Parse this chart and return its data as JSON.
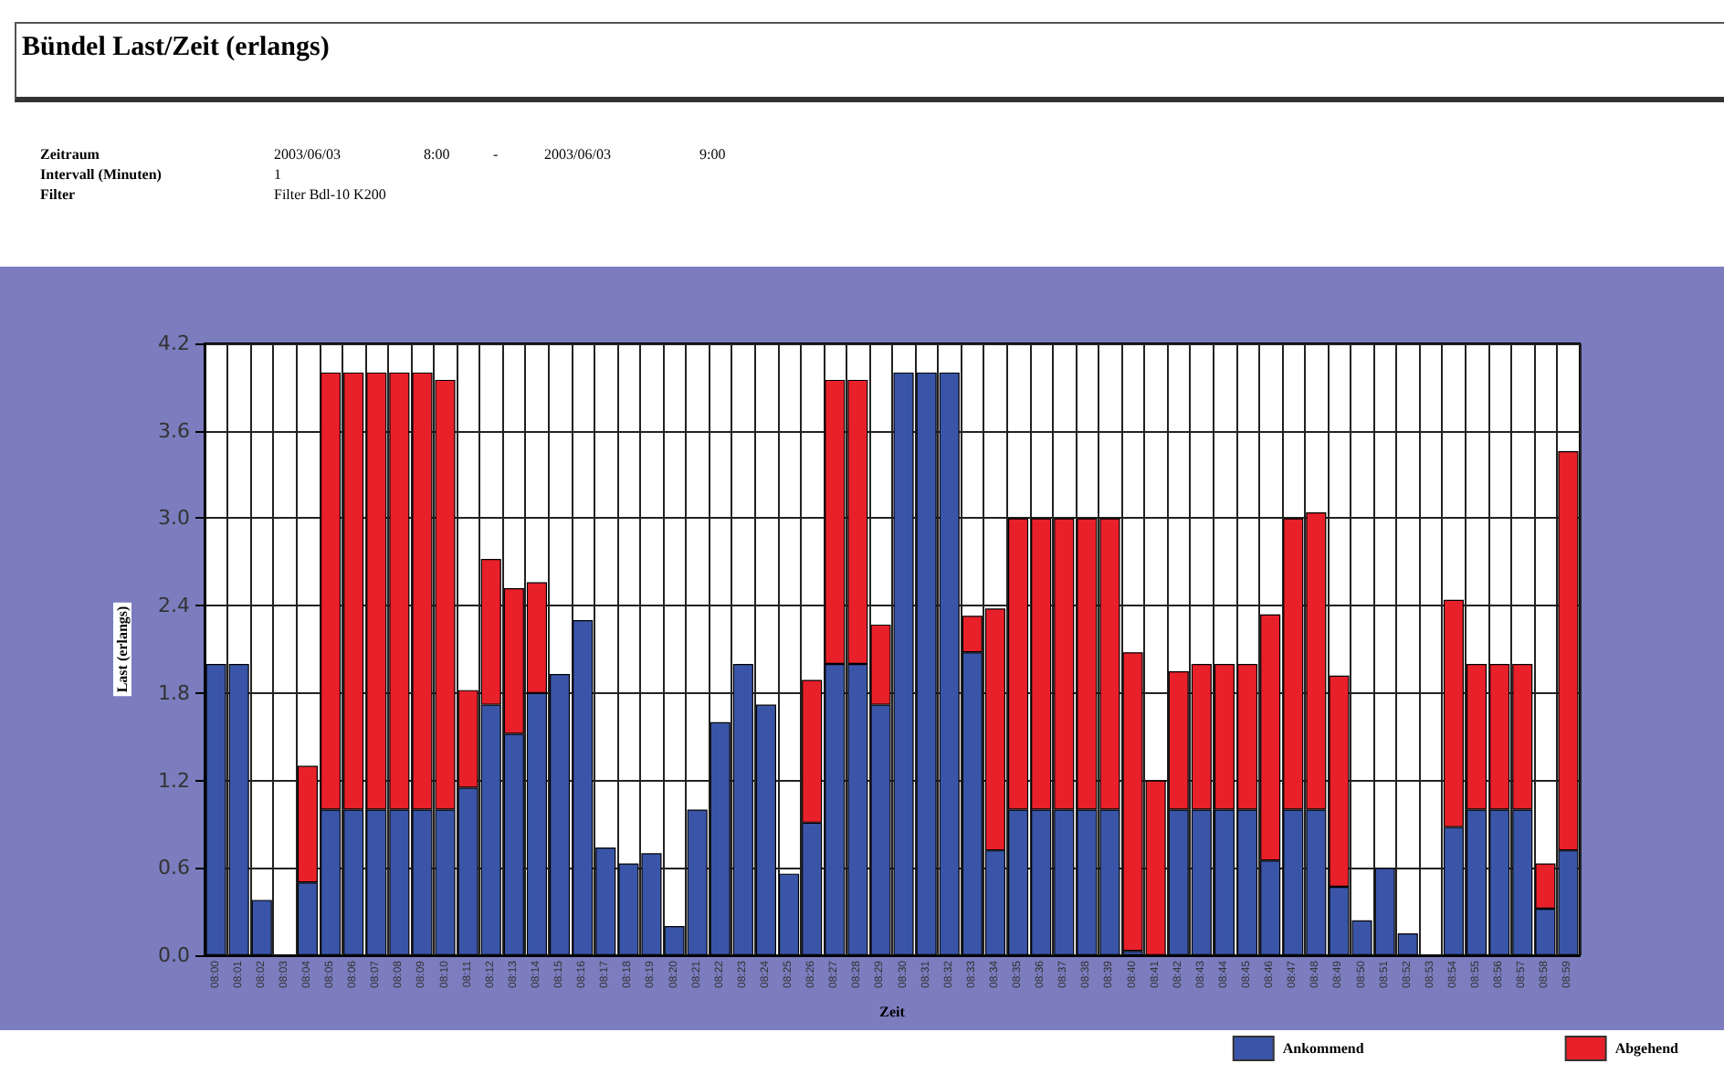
{
  "chart_data": {
    "type": "bar",
    "stacked": true,
    "title": "Bündel Last/Zeit (erlangs)",
    "annotations": [
      "Zeitraum",
      "2003/06/03",
      "8:00",
      "-",
      "2003/06/03",
      "9:00",
      "Intervall (Minuten)",
      "1",
      "Filter",
      "Filter Bdl-10 K200"
    ],
    "xlabel": "Zeit",
    "ylabel": "Last (erlangs)",
    "categories": [
      "08:00",
      "08:01",
      "08:02",
      "08:03",
      "08:04",
      "08:05",
      "08:06",
      "08:07",
      "08:08",
      "08:09",
      "08:10",
      "08:11",
      "08:12",
      "08:13",
      "08:14",
      "08:15",
      "08:16",
      "08:17",
      "08:18",
      "08:19",
      "08:20",
      "08:21",
      "08:22",
      "08:23",
      "08:24",
      "08:25",
      "08:26",
      "08:27",
      "08:28",
      "08:29",
      "08:30",
      "08:31",
      "08:32",
      "08:33",
      "08:34",
      "08:35",
      "08:36",
      "08:37",
      "08:38",
      "08:39",
      "08:40",
      "08:41",
      "08:42",
      "08:43",
      "08:44",
      "08:45",
      "08:46",
      "08:47",
      "08:48",
      "08:49",
      "08:50",
      "08:51",
      "08:52",
      "08:53",
      "08:54",
      "08:55",
      "08:56",
      "08:57",
      "08:58",
      "08:59"
    ],
    "series": [
      {
        "name": "Ankommend",
        "color": "#3a55a8",
        "values": [
          2.0,
          2.0,
          0.38,
          0,
          0.5,
          1.0,
          1.0,
          1.0,
          1.0,
          1.0,
          1.0,
          1.15,
          1.72,
          1.52,
          1.8,
          1.93,
          2.3,
          0.74,
          0.63,
          0.7,
          0.2,
          1.0,
          1.6,
          2.0,
          1.72,
          0.56,
          0.91,
          2.0,
          2.0,
          1.72,
          4.0,
          4.0,
          4.0,
          2.08,
          0.72,
          1.0,
          1.0,
          1.0,
          1.0,
          1.0,
          0.03,
          0,
          1.0,
          1.0,
          1.0,
          1.0,
          0.65,
          1.0,
          1.0,
          0.47,
          0.24,
          0.6,
          0.15,
          0,
          0.88,
          1.0,
          1.0,
          1.0,
          0.32,
          0.72
        ]
      },
      {
        "name": "Abgehend",
        "color": "#e8202a",
        "values": [
          0,
          0,
          0,
          0,
          0.8,
          3.0,
          3.0,
          3.0,
          3.0,
          3.0,
          2.95,
          0.67,
          1.0,
          1.0,
          0.76,
          0,
          0,
          0,
          0,
          0,
          0,
          0,
          0,
          0,
          0,
          0,
          0.98,
          1.95,
          1.95,
          0.55,
          0,
          0,
          0,
          0.25,
          1.66,
          2.0,
          2.0,
          2.0,
          2.0,
          2.0,
          2.05,
          1.2,
          0.95,
          1.0,
          1.0,
          1.0,
          1.69,
          2.0,
          2.04,
          1.45,
          0,
          0,
          0,
          0,
          1.56,
          1.0,
          1.0,
          1.0,
          0.31,
          2.74
        ]
      }
    ],
    "ylim": [
      0,
      4.2
    ],
    "yticks": [
      {
        "value": 0,
        "label": "0.0"
      },
      0.6,
      1.2,
      1.8,
      2.4,
      {
        "value": 3,
        "label": "3.0"
      },
      3.6,
      4.2
    ],
    "grid": true,
    "legend": "bottom right"
  }
}
